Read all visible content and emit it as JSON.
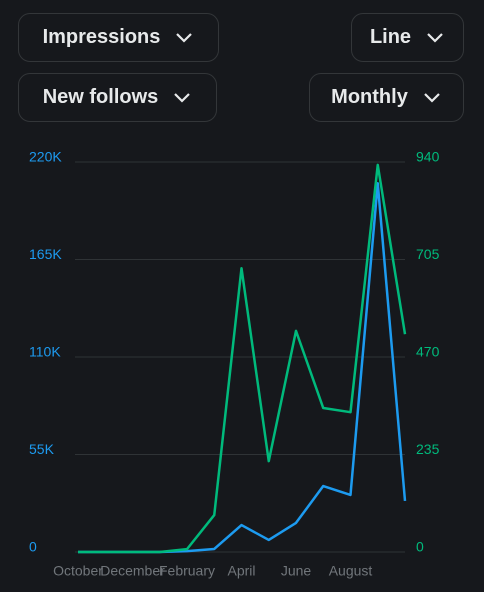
{
  "controls": {
    "chart_type": "Line",
    "period": "Monthly"
  },
  "chart_data": {
    "type": "line",
    "categories": [
      "October",
      null,
      "December",
      null,
      "February",
      null,
      "April",
      null,
      "June",
      null,
      "August",
      null,
      null
    ],
    "series": [
      {
        "name": "Impressions",
        "color": "#1d9bf0",
        "values": [
          0,
          0,
          0,
          0,
          500,
          1700,
          15200,
          6800,
          16400,
          37200,
          32200,
          208000,
          28800
        ]
      },
      {
        "name": "New follows",
        "color": "#00ba7c",
        "axis": "y2",
        "values": [
          0,
          0,
          0,
          0,
          7,
          89,
          684,
          219,
          533,
          347,
          337,
          933,
          525
        ]
      }
    ],
    "ylim": [
      0,
      220000
    ],
    "yticks": [
      0,
      {
        "value": 55000,
        "label": "55K"
      },
      {
        "value": 110000,
        "label": "110K"
      },
      {
        "value": 165000,
        "label": "165K"
      },
      {
        "value": 220000,
        "label": "220K"
      }
    ],
    "y2lim": [
      0,
      940
    ],
    "y2ticks": [
      0,
      235,
      470,
      705,
      940
    ],
    "grid": true
  }
}
